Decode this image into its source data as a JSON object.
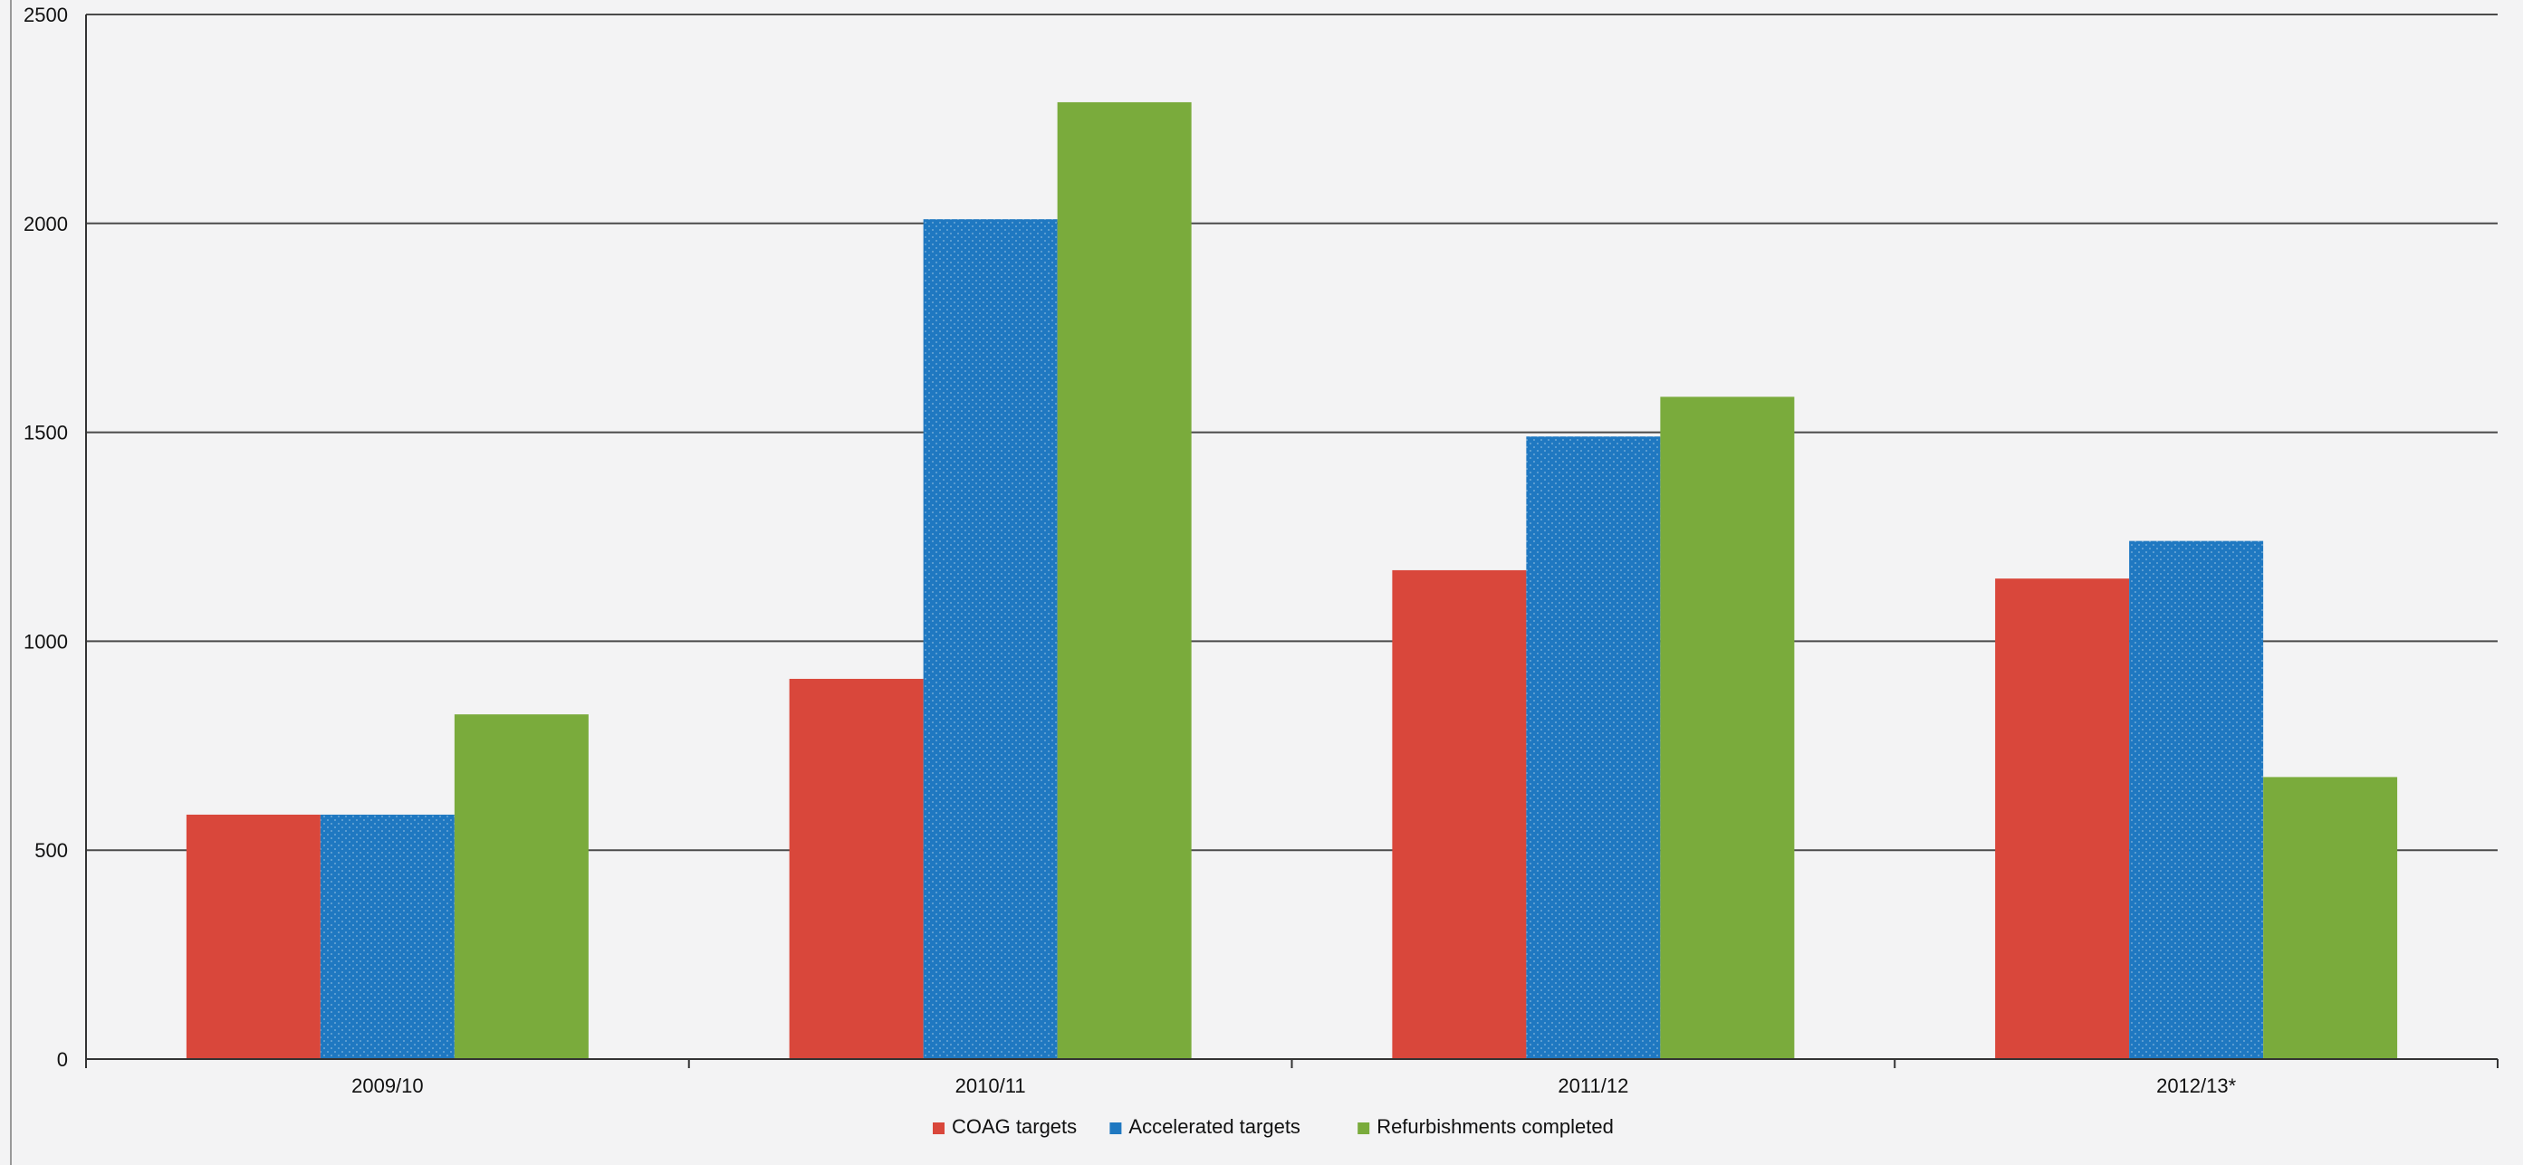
{
  "chart_data": {
    "type": "bar",
    "categories": [
      "2009/10",
      "2010/11",
      "2011/12",
      "2012/13*"
    ],
    "series": [
      {
        "name": "COAG targets",
        "color": "#d9473b",
        "values": [
          585,
          910,
          1170,
          1150
        ]
      },
      {
        "name": "Accelerated targets",
        "color": "#1f78c1",
        "values": [
          585,
          2010,
          1490,
          1240
        ]
      },
      {
        "name": "Refurbishments completed",
        "color": "#7aab3c",
        "values": [
          825,
          2290,
          1585,
          675
        ]
      }
    ],
    "yticks": [
      "0",
      "500",
      "1000",
      "1500",
      "2000",
      "2500"
    ],
    "ylim": [
      0,
      2500
    ],
    "grid": true,
    "legend_position": "bottom-center"
  }
}
